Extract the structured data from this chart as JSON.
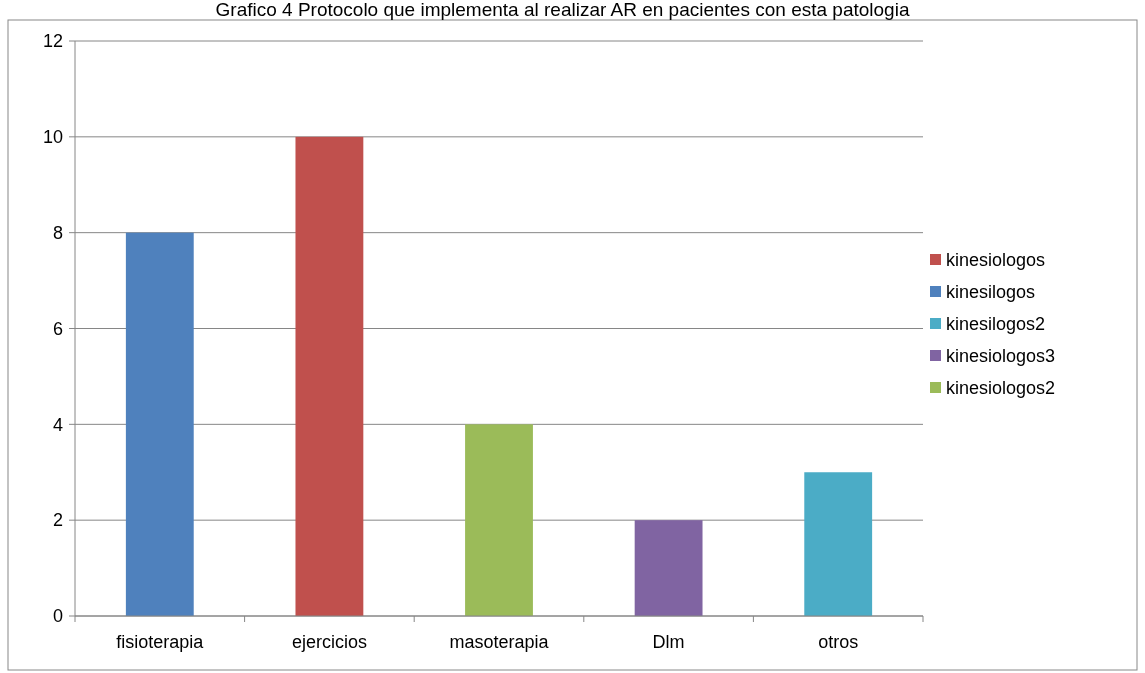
{
  "chart_data": {
    "type": "bar",
    "title": "Grafico 4 Protocolo que implementa al realizar AR en pacientes con esta patologia",
    "categories": [
      "fisioterapia",
      "ejercicios",
      "masoterapia",
      "Dlm",
      "otros"
    ],
    "stacked": true,
    "series": [
      {
        "name": "kinesiologos",
        "color": "#c0504d",
        "values": [
          null,
          10,
          null,
          null,
          null
        ]
      },
      {
        "name": "kinesilogos",
        "color": "#4f81bd",
        "values": [
          8,
          null,
          null,
          null,
          null
        ]
      },
      {
        "name": "kinesilogos2",
        "color": "#4bacc6",
        "values": [
          null,
          null,
          null,
          null,
          3
        ]
      },
      {
        "name": "kinesiologos3",
        "color": "#8064a2",
        "values": [
          null,
          null,
          null,
          2,
          null
        ]
      },
      {
        "name": "kinesiologos2",
        "color": "#9bbb59",
        "values": [
          null,
          null,
          4,
          null,
          null
        ]
      }
    ],
    "ylim": [
      0,
      12
    ],
    "yticks": [
      0,
      2,
      4,
      6,
      8,
      10,
      12
    ],
    "grid": "y",
    "legend": "right"
  }
}
